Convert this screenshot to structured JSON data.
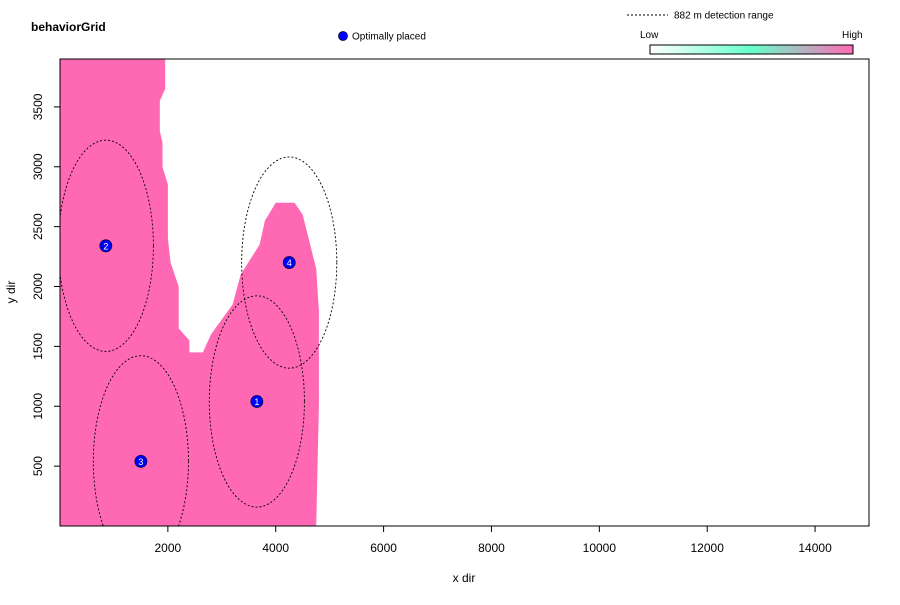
{
  "chart_data": {
    "type": "heatmap",
    "title": "behaviorGrid",
    "xlabel": "x dir",
    "ylabel": "y dir",
    "xlim": [
      0,
      15000
    ],
    "ylim": [
      0,
      3900
    ],
    "xticks": [
      "2000",
      "4000",
      "6000",
      "8000",
      "10000",
      "12000",
      "14000"
    ],
    "yticks": [
      "500",
      "1000",
      "1500",
      "2000",
      "2500",
      "3000",
      "3500"
    ],
    "grid": false,
    "legend": {
      "placement": "top",
      "receiver_label": "Optimally placed",
      "range_label": "882 m detection range",
      "colorbar_low": "Low",
      "colorbar_high": "High",
      "colorbar_colors": [
        "#ffffff",
        "#66ffcc",
        "#ff69b4"
      ]
    },
    "habitat_color": "#ff69b4",
    "receiver_color": "#0000ff",
    "detection_range_m": 882,
    "habitat_polygon": [
      [
        0,
        0
      ],
      [
        0,
        3900
      ],
      [
        1950,
        3900
      ],
      [
        1950,
        3650
      ],
      [
        1850,
        3550
      ],
      [
        1850,
        3300
      ],
      [
        1900,
        3200
      ],
      [
        1900,
        3000
      ],
      [
        2000,
        2850
      ],
      [
        2000,
        2400
      ],
      [
        2050,
        2200
      ],
      [
        2200,
        2000
      ],
      [
        2200,
        1650
      ],
      [
        2400,
        1550
      ],
      [
        2400,
        1450
      ],
      [
        2650,
        1450
      ],
      [
        2800,
        1600
      ],
      [
        3200,
        1850
      ],
      [
        3350,
        2100
      ],
      [
        3700,
        2350
      ],
      [
        3800,
        2550
      ],
      [
        4000,
        2700
      ],
      [
        4350,
        2700
      ],
      [
        4500,
        2600
      ],
      [
        4750,
        2150
      ],
      [
        4800,
        1800
      ],
      [
        4800,
        1000
      ],
      [
        4750,
        0
      ]
    ],
    "receivers": [
      {
        "id": "1",
        "x": 3650,
        "y": 1040
      },
      {
        "id": "2",
        "x": 850,
        "y": 2340
      },
      {
        "id": "3",
        "x": 1500,
        "y": 540
      },
      {
        "id": "4",
        "x": 4250,
        "y": 2200
      }
    ]
  }
}
